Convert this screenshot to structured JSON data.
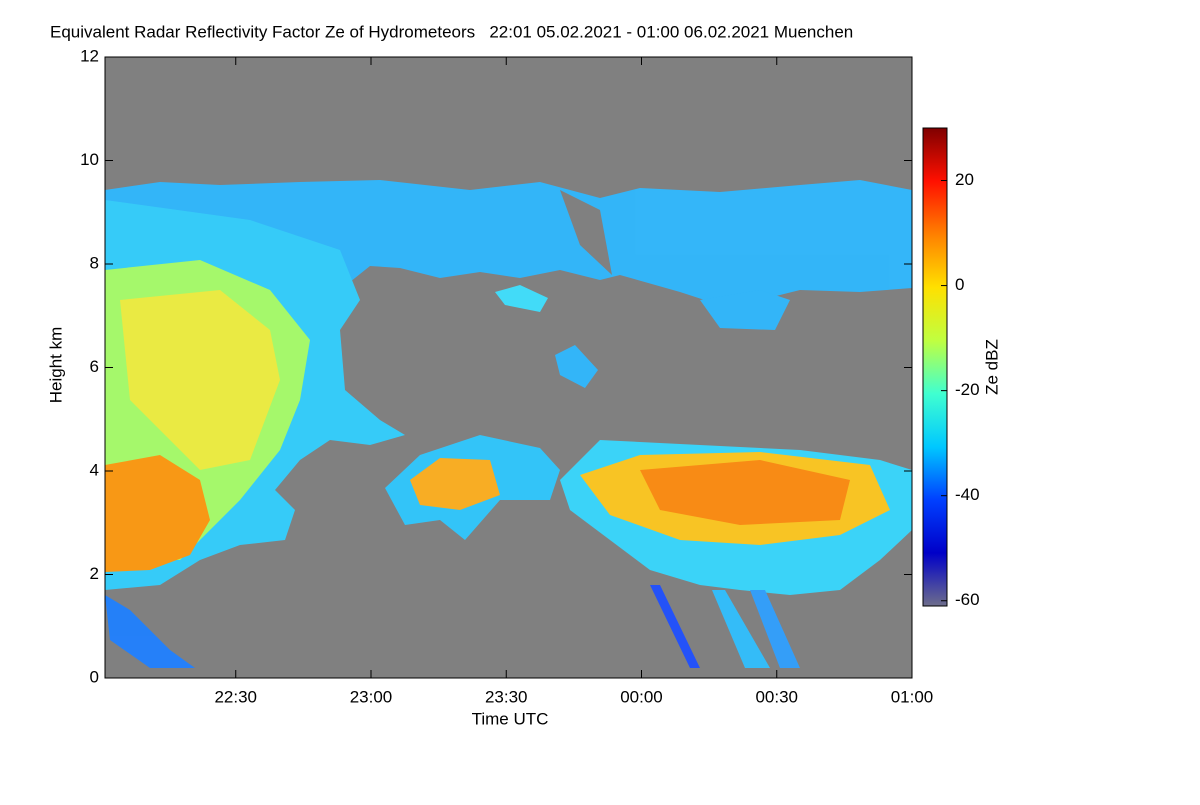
{
  "chart_data": {
    "type": "heatmap",
    "title": "Equivalent Radar Reflectivity Factor Ze of Hydrometeors   22:01 05.02.2021 - 01:00 06.02.2021 Muenchen",
    "x_label": "Time UTC",
    "y_label": "Height km",
    "colorbar_label": "Ze dBZ",
    "xlim": [
      1,
      180
    ],
    "xticks": [
      {
        "value": 30,
        "label": "22:30"
      },
      {
        "value": 60,
        "label": "23:00"
      },
      {
        "value": 90,
        "label": "23:30"
      },
      {
        "value": 120,
        "label": "00:00"
      },
      {
        "value": 150,
        "label": "00:30"
      },
      {
        "value": 180,
        "label": "01:00"
      }
    ],
    "ylim": [
      0,
      12
    ],
    "yticks": [
      0,
      2,
      4,
      6,
      8,
      10,
      12
    ],
    "zlim": [
      -61,
      30
    ],
    "zticks": [
      -60,
      -40,
      -20,
      0,
      20
    ],
    "background": "#808080",
    "colormap": [
      "#6e6e8c",
      "#0000c8",
      "#0040ff",
      "#00c8ff",
      "#40ffd0",
      "#c0ff40",
      "#ffe000",
      "#ff8000",
      "#ff1000",
      "#800000"
    ]
  }
}
